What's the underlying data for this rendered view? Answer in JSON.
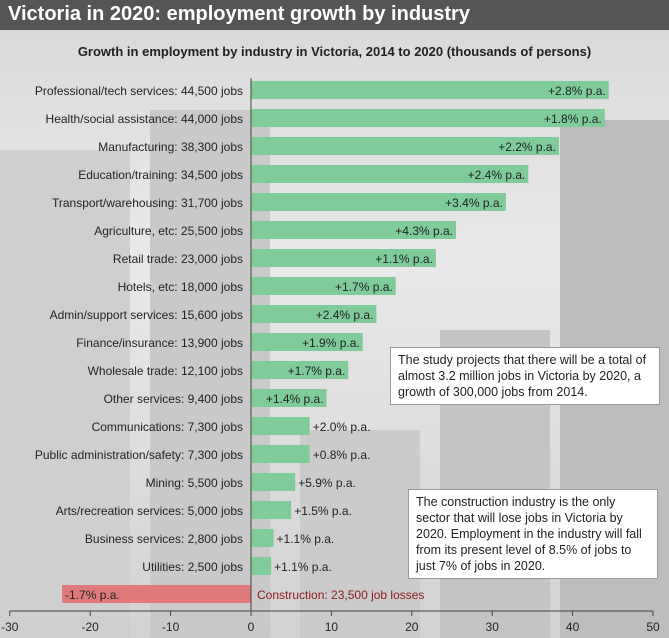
{
  "title": "Victoria in 2020: employment growth by industry",
  "subtitle": "Growth in employment by industry in Victoria, 2014 to 2020 (thousands of persons)",
  "notes": {
    "total": "The study projects that there will be a total of almost 3.2 million jobs in Victoria by 2020, a growth of 300,000 jobs from 2014.",
    "construction": "The construction industry is the only sector that will lose jobs in Victoria by 2020. Employment in the industry will fall from its present level of 8.5% of jobs to just 7% of jobs in 2020."
  },
  "colors": {
    "positive": "#7fcc9a",
    "negative": "#e07a7a",
    "title_bar": "#555555"
  },
  "chart_data": {
    "type": "bar",
    "orientation": "horizontal",
    "title": "Growth in employment by industry in Victoria, 2014 to 2020 (thousands of persons)",
    "xlim": [
      -30,
      50
    ],
    "xticks": [
      -30,
      -20,
      -10,
      0,
      10,
      20,
      30,
      40,
      50
    ],
    "categories": [
      "Professional/tech services: 44,500 jobs",
      "Health/social assistance: 44,000 jobs",
      "Manufacturing: 38,300 jobs",
      "Education/training: 34,500 jobs",
      "Transport/warehousing: 31,700 jobs",
      "Agriculture, etc: 25,500 jobs",
      "Retail trade: 23,000 jobs",
      "Hotels, etc: 18,000 jobs",
      "Admin/support services: 15,600 jobs",
      "Finance/insurance: 13,900 jobs",
      "Wholesale trade: 12,100 jobs",
      "Other services: 9,400 jobs",
      "Communications: 7,300 jobs",
      "Public administration/safety: 7,300 jobs",
      "Mining: 5,500 jobs",
      "Arts/recreation services: 5,000 jobs",
      "Business services: 2,800 jobs",
      "Utilities: 2,500 jobs",
      "Construction: 23,500 job losses"
    ],
    "values": [
      44.5,
      44.0,
      38.3,
      34.5,
      31.7,
      25.5,
      23.0,
      18.0,
      15.6,
      13.9,
      12.1,
      9.4,
      7.3,
      7.3,
      5.5,
      5.0,
      2.8,
      2.5,
      -23.5
    ],
    "rate_labels": [
      "+2.8% p.a.",
      "+1.8% p.a.",
      "+2.2% p.a.",
      "+2.4% p.a.",
      "+3.4% p.a.",
      "+4.3% p.a.",
      "+1.1% p.a.",
      "+1.7% p.a.",
      "+2.4% p.a.",
      "+1.9% p.a.",
      "+1.7% p.a.",
      "+1.4% p.a.",
      "+2.0% p.a.",
      "+0.8% p.a.",
      "+5.9% p.a.",
      "+1.5% p.a.",
      "+1.1% p.a.",
      "+1.1% p.a.",
      "-1.7% p.a."
    ],
    "grid": false
  }
}
